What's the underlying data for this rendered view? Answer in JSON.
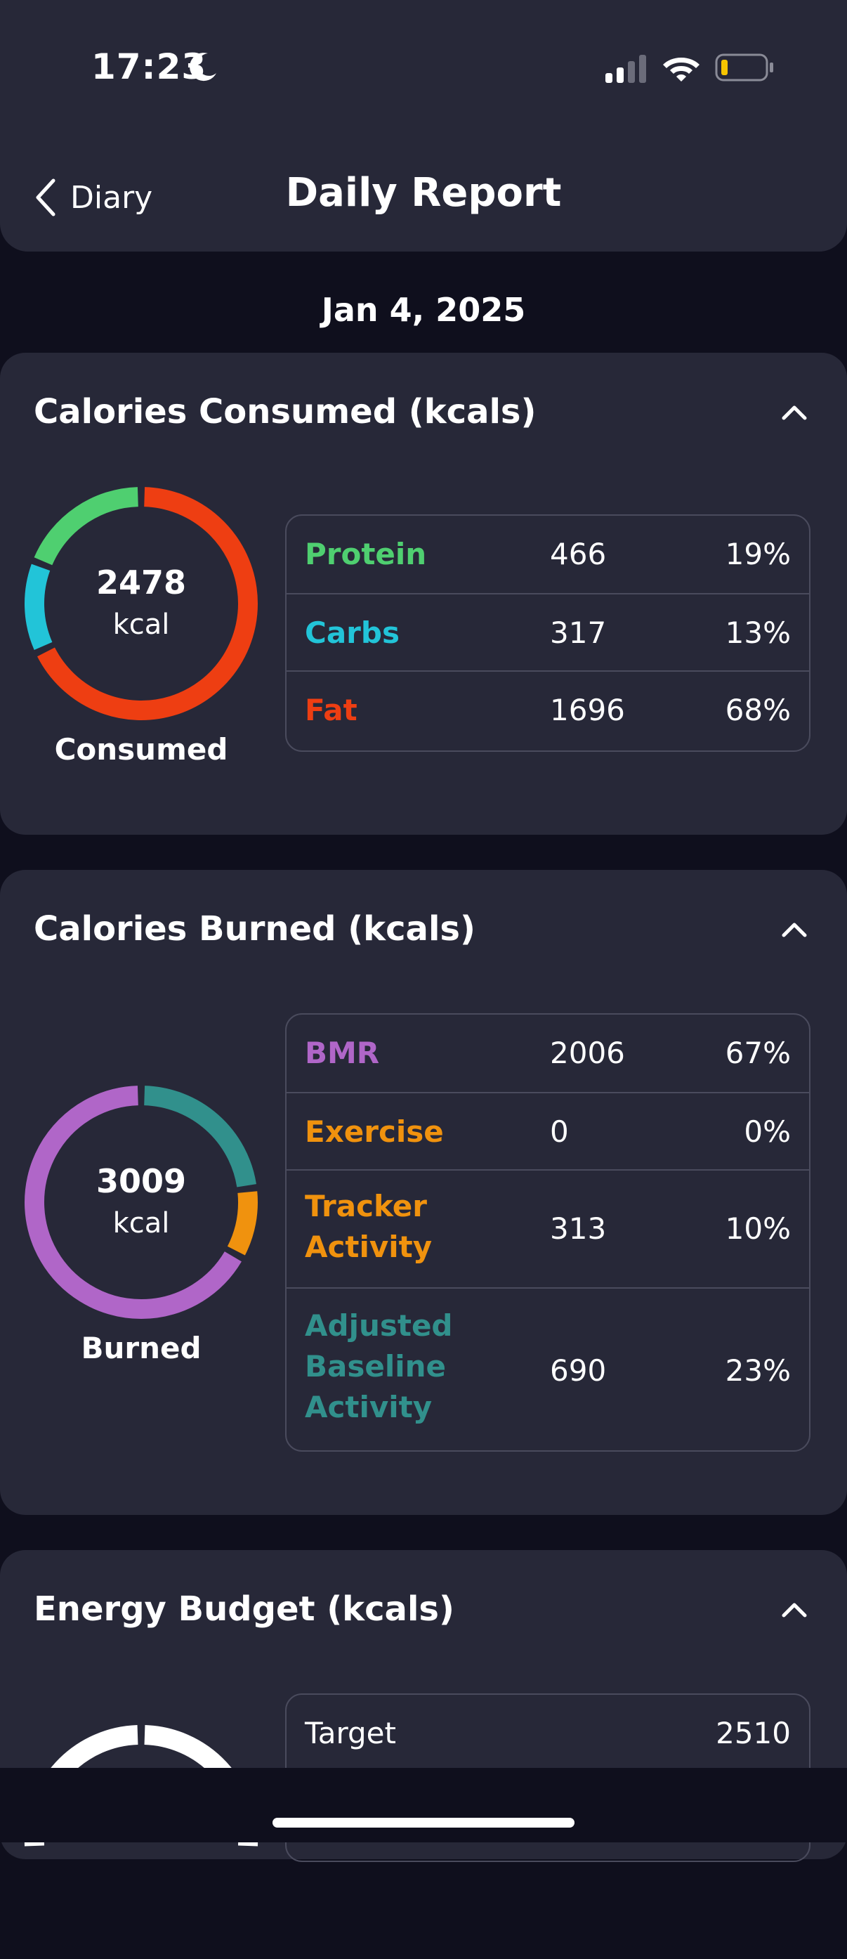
{
  "status_bar": {
    "time": "17:23",
    "icons": [
      "moon-icon",
      "signal-icon",
      "wifi-icon",
      "battery-icon"
    ]
  },
  "nav": {
    "back_label": "Diary",
    "title": "Daily Report"
  },
  "date": "Jan 4, 2025",
  "consumed": {
    "title": "Calories Consumed (kcals)",
    "total": "2478",
    "unit": "kcal",
    "caption": "Consumed",
    "rows": [
      {
        "label": "Protein",
        "value": "466",
        "pct": "19%",
        "color": "#4fcf70",
        "fraction": 0.19
      },
      {
        "label": "Carbs",
        "value": "317",
        "pct": "13%",
        "color": "#22c4d8",
        "fraction": 0.13
      },
      {
        "label": "Fat",
        "value": "1696",
        "pct": "68%",
        "color": "#ee3e12",
        "fraction": 0.68
      }
    ]
  },
  "burned": {
    "title": "Calories Burned (kcals)",
    "total": "3009",
    "unit": "kcal",
    "caption": "Burned",
    "rows": [
      {
        "label": "BMR",
        "value": "2006",
        "pct": "67%",
        "color": "#b066c8",
        "fraction": 0.67
      },
      {
        "label": "Exercise",
        "value": "0",
        "pct": "0%",
        "color": "#f0920e",
        "fraction": 0.0
      },
      {
        "label": "Tracker Activity",
        "value": "313",
        "pct": "10%",
        "color": "#f0920e",
        "fraction": 0.1
      },
      {
        "label": "Adjusted Baseline Activity",
        "value": "690",
        "pct": "23%",
        "color": "#31908c",
        "fraction": 0.23
      }
    ]
  },
  "budget": {
    "title": "Energy Budget (kcals)",
    "rows": [
      {
        "label": "Target",
        "value": "2510"
      }
    ]
  }
}
